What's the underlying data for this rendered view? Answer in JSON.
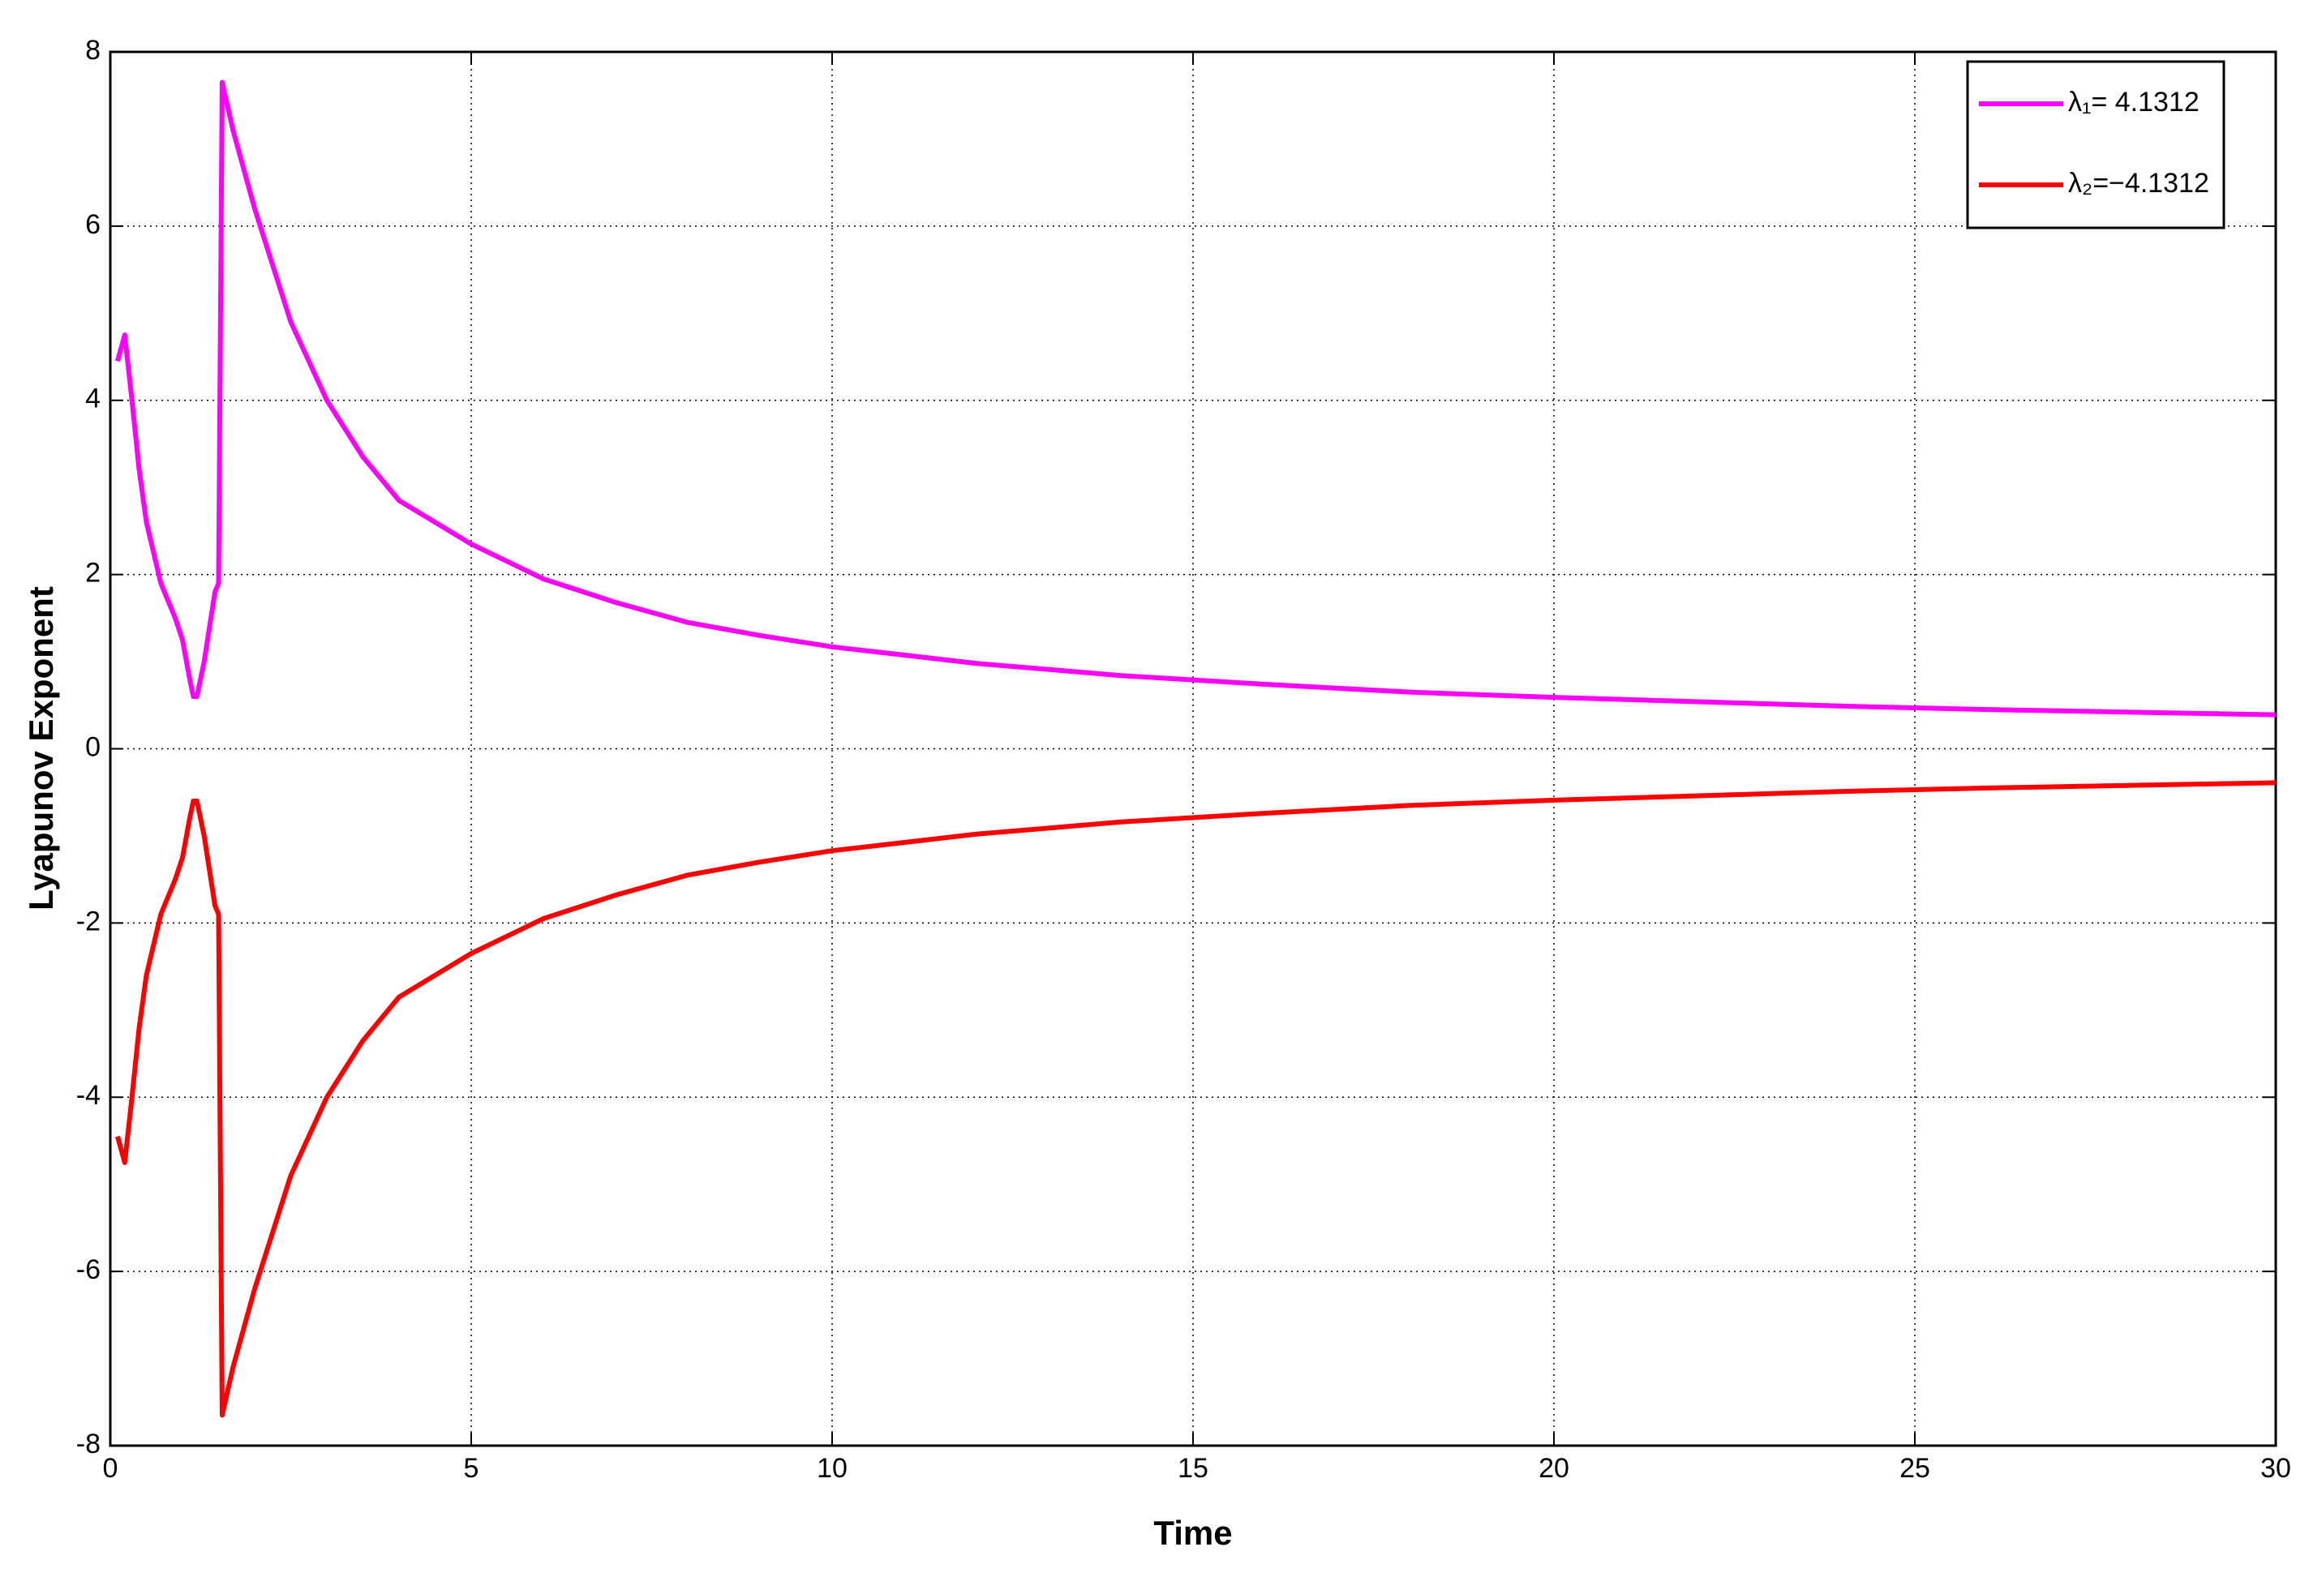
{
  "chart_data": {
    "type": "line",
    "xlabel": "Time",
    "ylabel": "Lyapunov Exponent",
    "x": [
      0.1,
      0.2,
      0.3,
      0.4,
      0.5,
      0.7,
      0.9,
      1.0,
      1.1,
      1.15,
      1.2,
      1.3,
      1.45,
      1.5,
      1.55,
      1.7,
      2.0,
      2.5,
      3,
      3.5,
      4,
      5,
      6,
      7,
      8,
      9,
      10,
      12,
      14,
      16,
      18,
      20,
      22,
      24,
      26,
      28,
      30
    ],
    "series": [
      {
        "name": "λ₁= 4.1312",
        "color": "#ff00ff",
        "values": [
          4.45,
          4.75,
          4.0,
          3.2,
          2.6,
          1.9,
          1.5,
          1.25,
          0.8,
          0.6,
          0.6,
          1.0,
          1.8,
          1.9,
          7.65,
          7.1,
          6.2,
          4.9,
          4.0,
          3.35,
          2.85,
          2.35,
          1.95,
          1.68,
          1.45,
          1.3,
          1.17,
          0.98,
          0.84,
          0.74,
          0.65,
          0.59,
          0.54,
          0.49,
          0.45,
          0.42,
          0.39
        ]
      },
      {
        "name": "λ₂=−4.1312",
        "color": "#ff0000",
        "values": [
          -4.45,
          -4.75,
          -4.0,
          -3.2,
          -2.6,
          -1.9,
          -1.5,
          -1.25,
          -0.8,
          -0.6,
          -0.6,
          -1.0,
          -1.8,
          -1.9,
          -7.65,
          -7.1,
          -6.2,
          -4.9,
          -4.0,
          -3.35,
          -2.85,
          -2.35,
          -1.95,
          -1.68,
          -1.45,
          -1.3,
          -1.17,
          -0.98,
          -0.84,
          -0.74,
          -0.65,
          -0.59,
          -0.54,
          -0.49,
          -0.45,
          -0.42,
          -0.39
        ]
      }
    ],
    "xlim": [
      0,
      30
    ],
    "xticks": [
      0,
      5,
      10,
      15,
      20,
      25,
      30
    ],
    "ylim": [
      -8,
      8
    ],
    "yticks": [
      -8,
      -6,
      -4,
      -2,
      0,
      2,
      4,
      6,
      8
    ],
    "grid": true,
    "legend": "upper right"
  }
}
